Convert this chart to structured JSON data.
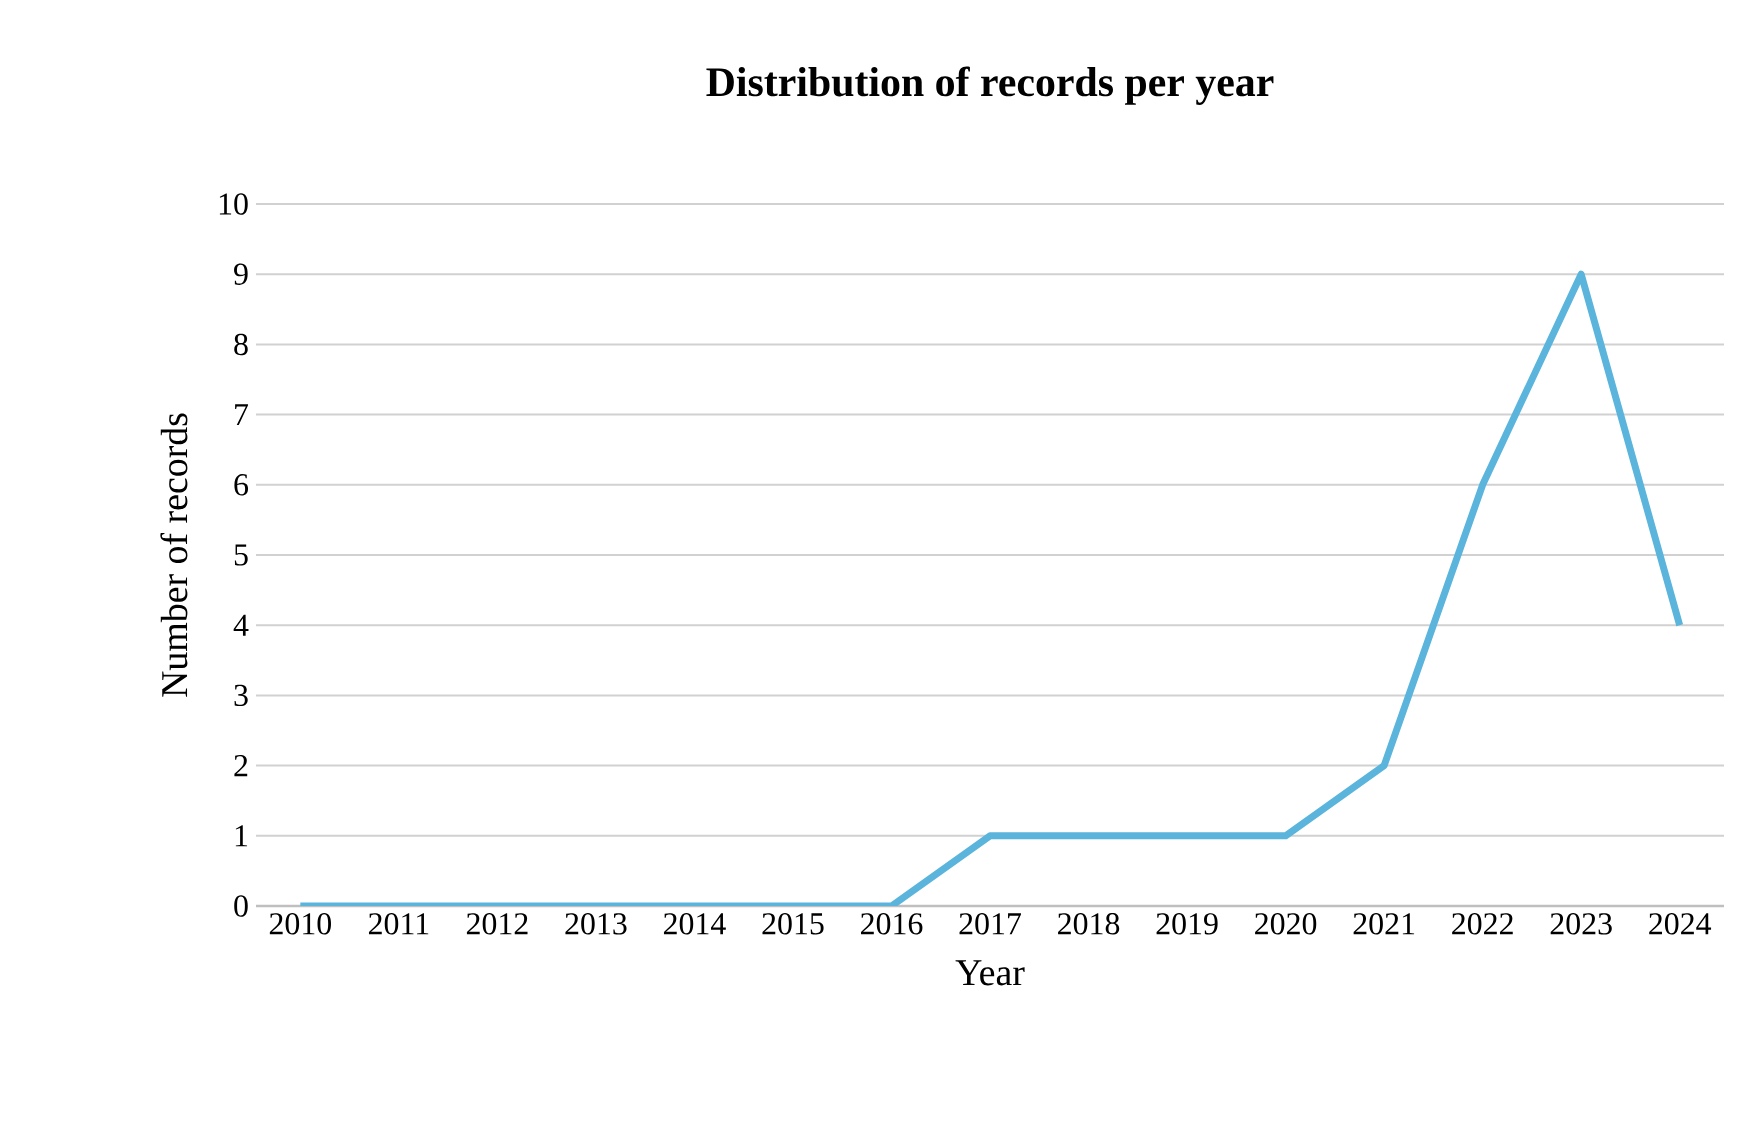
{
  "chart_data": {
    "type": "line",
    "title": "Distribution  of records per year",
    "xlabel": "Year",
    "ylabel": "Number of records",
    "categories": [
      "2010",
      "2011",
      "2012",
      "2013",
      "2014",
      "2015",
      "2016",
      "2017",
      "2018",
      "2019",
      "2020",
      "2021",
      "2022",
      "2023",
      "2024"
    ],
    "series": [
      {
        "color": "#5ab4dc",
        "values": [
          0,
          0,
          0,
          0,
          0,
          0,
          0,
          1,
          1,
          1,
          1,
          2,
          6,
          9,
          4
        ]
      }
    ],
    "ylim": [
      0,
      10
    ],
    "yticks": [
      0,
      1,
      2,
      3,
      4,
      5,
      6,
      7,
      8,
      9,
      10
    ],
    "grid": "y"
  }
}
